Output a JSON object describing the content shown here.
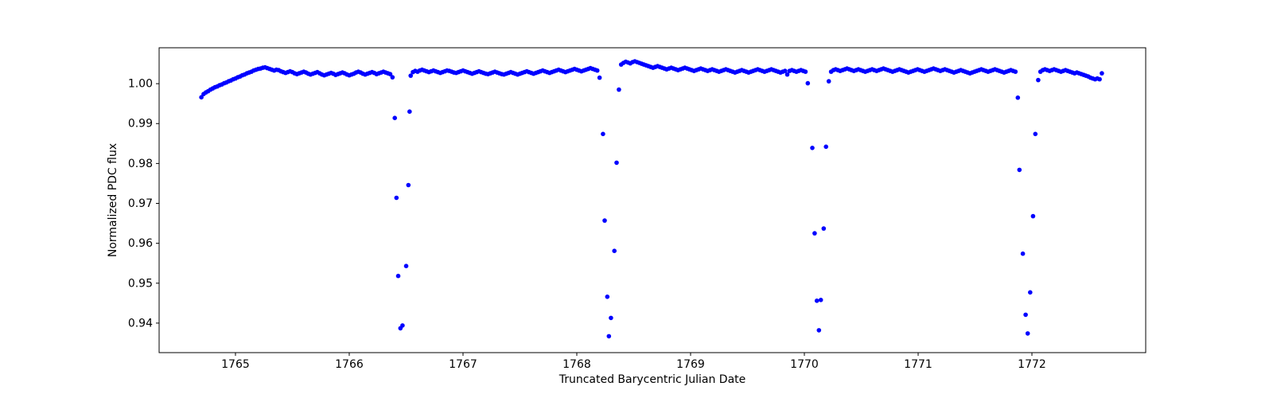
{
  "figure": {
    "background_color": "#ffffff",
    "spine_color": "#000000",
    "tick_color": "#000000",
    "text_color": "#000000"
  },
  "chart_data": {
    "type": "scatter",
    "title": "",
    "xlabel": "Truncated Barycentric Julian Date",
    "ylabel": "Normalized PDC flux",
    "grid": false,
    "legend": null,
    "xlim": [
      1764.329,
      1773.0
    ],
    "ylim": [
      0.9326,
      1.009
    ],
    "x_ticks": [
      {
        "value": 1765,
        "label": "1765"
      },
      {
        "value": 1766,
        "label": "1766"
      },
      {
        "value": 1767,
        "label": "1767"
      },
      {
        "value": 1768,
        "label": "1768"
      },
      {
        "value": 1769,
        "label": "1769"
      },
      {
        "value": 1770,
        "label": "1770"
      },
      {
        "value": 1771,
        "label": "1771"
      },
      {
        "value": 1772,
        "label": "1772"
      }
    ],
    "y_ticks": [
      {
        "value": 1.0,
        "label": "1.00"
      },
      {
        "value": 0.99,
        "label": "0.99"
      },
      {
        "value": 0.98,
        "label": "0.98"
      },
      {
        "value": 0.97,
        "label": "0.97"
      },
      {
        "value": 0.96,
        "label": "0.96"
      },
      {
        "value": 0.95,
        "label": "0.95"
      },
      {
        "value": 0.94,
        "label": "0.94"
      }
    ],
    "marker": {
      "shape": "circle",
      "color": "#0000ff",
      "radius_px": 2.8
    },
    "series": [
      {
        "name": "normalized-pdc-flux",
        "baseline_segments": [
          {
            "x_start": 1764.7,
            "x_step": 0.02,
            "flux": [
              0.9966,
              0.9974,
              0.9978,
              0.9981,
              0.9985,
              0.9988,
              0.9991,
              0.9993,
              0.9996,
              0.9998,
              1.0001,
              1.0003,
              1.0006,
              1.0008,
              1.0011,
              1.0013,
              1.0016,
              1.0018,
              1.0021,
              1.0023,
              1.0026,
              1.0028,
              1.003,
              1.0033,
              1.0035,
              1.0037,
              1.0038,
              1.004,
              1.0041,
              1.0039,
              1.0037,
              1.0035,
              1.0033,
              1.0035,
              1.0034,
              1.0031,
              1.0029,
              1.0027,
              1.0029,
              1.0031,
              1.0029,
              1.0026,
              1.0024,
              1.0026,
              1.0028,
              1.003,
              1.0028,
              1.0025,
              1.0023,
              1.0025,
              1.0027,
              1.0029,
              1.0026,
              1.0023,
              1.0021,
              1.0023,
              1.0025,
              1.0027,
              1.0025,
              1.0022,
              1.0024,
              1.0026,
              1.0028,
              1.0026,
              1.0023,
              1.0021,
              1.0023,
              1.0025,
              1.0028,
              1.003,
              1.0028,
              1.0025,
              1.0023,
              1.0025,
              1.0027,
              1.0029,
              1.0027,
              1.0024,
              1.0026,
              1.0028,
              1.003,
              1.0028,
              1.0026,
              1.0024,
              1.0016
            ]
          },
          {
            "x_start": 1766.54,
            "x_step": 0.02,
            "flux": [
              1.002,
              1.0029,
              1.0032,
              1.003,
              1.0033,
              1.0035,
              1.0033,
              1.0031,
              1.0029,
              1.0031,
              1.0033,
              1.0031,
              1.0029,
              1.0027,
              1.0029,
              1.0031,
              1.0033,
              1.0032,
              1.003,
              1.0028,
              1.0027,
              1.0029,
              1.0031,
              1.0033,
              1.0031,
              1.0029,
              1.0027,
              1.0025,
              1.0027,
              1.0029,
              1.0031,
              1.0029,
              1.0027,
              1.0025,
              1.0024,
              1.0026,
              1.0028,
              1.003,
              1.0028,
              1.0026,
              1.0024,
              1.0023,
              1.0025,
              1.0027,
              1.0029,
              1.0027,
              1.0025,
              1.0023,
              1.0025,
              1.0027,
              1.0029,
              1.0031,
              1.0029,
              1.0027,
              1.0025,
              1.0027,
              1.0029,
              1.0031,
              1.0033,
              1.0031,
              1.0029,
              1.0027,
              1.0029,
              1.0031,
              1.0033,
              1.0035,
              1.0033,
              1.0031,
              1.0029,
              1.0031,
              1.0033,
              1.0035,
              1.0037,
              1.0035,
              1.0033,
              1.0031,
              1.0033,
              1.0035,
              1.0037,
              1.0039,
              1.0037,
              1.0035,
              1.0033,
              1.0015
            ]
          },
          {
            "x_start": 1768.39,
            "x_step": 0.02,
            "flux": [
              1.0048,
              1.0052,
              1.0055,
              1.0053,
              1.0051,
              1.0054,
              1.0056,
              1.0054,
              1.0052,
              1.005,
              1.0048,
              1.0046,
              1.0044,
              1.0042,
              1.004,
              1.0042,
              1.0044,
              1.0042,
              1.004,
              1.0038,
              1.0036,
              1.0038,
              1.004,
              1.0038,
              1.0036,
              1.0034,
              1.0036,
              1.0038,
              1.004,
              1.0038,
              1.0036,
              1.0034,
              1.0032,
              1.0034,
              1.0036,
              1.0038,
              1.0036,
              1.0034,
              1.0032,
              1.0034,
              1.0036,
              1.0034,
              1.0032,
              1.003,
              1.0032,
              1.0034,
              1.0036,
              1.0034,
              1.0032,
              1.003,
              1.0028,
              1.003,
              1.0032,
              1.0034,
              1.0032,
              1.003,
              1.0028,
              1.003,
              1.0032,
              1.0034,
              1.0036,
              1.0034,
              1.0032,
              1.003,
              1.0032,
              1.0034,
              1.0036,
              1.0034,
              1.0032,
              1.003,
              1.0028,
              1.003,
              1.0032,
              1.0023,
              1.0032,
              1.0034,
              1.0032,
              1.003,
              1.0032,
              1.0034,
              1.0032,
              1.003,
              1.0001
            ]
          },
          {
            "x_start": 1770.215,
            "x_step": 0.02,
            "flux": [
              1.0006,
              1.003,
              1.0034,
              1.0036,
              1.0034,
              1.0032,
              1.0034,
              1.0036,
              1.0038,
              1.0036,
              1.0034,
              1.0032,
              1.0034,
              1.0036,
              1.0034,
              1.0032,
              1.003,
              1.0032,
              1.0034,
              1.0036,
              1.0034,
              1.0032,
              1.0034,
              1.0036,
              1.0038,
              1.0036,
              1.0034,
              1.0032,
              1.003,
              1.0032,
              1.0034,
              1.0036,
              1.0034,
              1.0032,
              1.003,
              1.0028,
              1.003,
              1.0032,
              1.0034,
              1.0036,
              1.0034,
              1.0032,
              1.003,
              1.0032,
              1.0034,
              1.0036,
              1.0038,
              1.0036,
              1.0034,
              1.0032,
              1.0034,
              1.0036,
              1.0034,
              1.0032,
              1.003,
              1.0028,
              1.003,
              1.0032,
              1.0034,
              1.0032,
              1.003,
              1.0028,
              1.0026,
              1.0028,
              1.003,
              1.0032,
              1.0034,
              1.0036,
              1.0034,
              1.0032,
              1.003,
              1.0032,
              1.0034,
              1.0036,
              1.0034,
              1.0032,
              1.003,
              1.0028,
              1.003,
              1.0032,
              1.0034,
              1.0032,
              1.003
            ]
          },
          {
            "x_start": 1772.055,
            "x_step": 0.02,
            "flux": [
              1.0009,
              1.003,
              1.0034,
              1.0036,
              1.0034,
              1.0032,
              1.0034,
              1.0036,
              1.0034,
              1.0032,
              1.003,
              1.0032,
              1.0034,
              1.0032,
              1.003,
              1.0028,
              1.0026,
              1.0028,
              1.0026,
              1.0024,
              1.0022,
              1.002,
              1.0018,
              1.0015,
              1.0013,
              1.0011,
              1.0013,
              1.0011,
              1.0026
            ]
          }
        ],
        "transit_points": [
          [
            1766.4,
            0.9914
          ],
          [
            1766.53,
            0.993
          ],
          [
            1766.415,
            0.9714
          ],
          [
            1766.52,
            0.9746
          ],
          [
            1766.43,
            0.9518
          ],
          [
            1766.5,
            0.9543
          ],
          [
            1766.45,
            0.9387
          ],
          [
            1766.468,
            0.9394
          ],
          [
            1768.37,
            0.9985
          ],
          [
            1768.23,
            0.9874
          ],
          [
            1768.35,
            0.9802
          ],
          [
            1768.245,
            0.9657
          ],
          [
            1768.33,
            0.9581
          ],
          [
            1768.268,
            0.9466
          ],
          [
            1768.3,
            0.9413
          ],
          [
            1768.282,
            0.9367
          ],
          [
            1770.07,
            0.9839
          ],
          [
            1770.19,
            0.9842
          ],
          [
            1770.09,
            0.9625
          ],
          [
            1770.17,
            0.9637
          ],
          [
            1770.11,
            0.9456
          ],
          [
            1770.145,
            0.9458
          ],
          [
            1770.128,
            0.9382
          ],
          [
            1771.876,
            0.9965
          ],
          [
            1772.03,
            0.9874
          ],
          [
            1771.89,
            0.9784
          ],
          [
            1772.01,
            0.9668
          ],
          [
            1771.92,
            0.9574
          ],
          [
            1771.985,
            0.9477
          ],
          [
            1771.945,
            0.9421
          ],
          [
            1771.963,
            0.9374
          ]
        ]
      }
    ]
  }
}
